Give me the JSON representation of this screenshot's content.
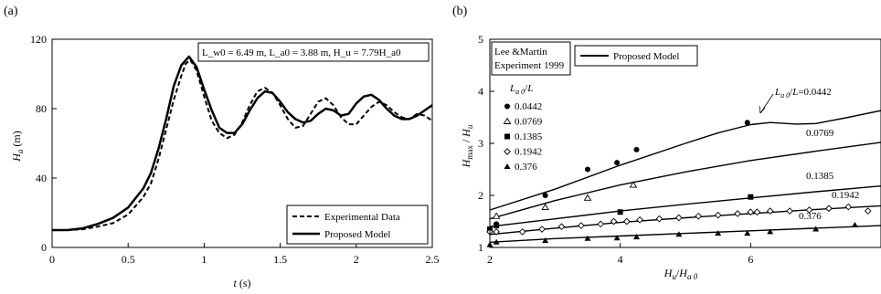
{
  "chart_data": [
    {
      "panel_label": "(a)",
      "type": "line",
      "xlabel": "t  (s)",
      "ylabel": "H_a  (m)",
      "xlim": [
        0,
        2.5
      ],
      "ylim": [
        0,
        120
      ],
      "xticks": [
        0,
        0.5,
        1,
        1.5,
        2,
        2.5
      ],
      "xtick_labels": [
        "0",
        "0.5",
        "1",
        "1.5",
        "2",
        "2.5"
      ],
      "yticks": [
        0,
        40,
        80,
        120
      ],
      "ytick_labels": [
        "0",
        "40",
        "80",
        "120"
      ],
      "annotation": "L_w0 = 6.49 m, L_a0 = 3.88 m, H_u = 7.79H_a0",
      "legend_position": "bottom-right",
      "series": [
        {
          "name": "Experimental Data",
          "style": "dashed",
          "x": [
            0,
            0.1,
            0.2,
            0.3,
            0.4,
            0.5,
            0.6,
            0.65,
            0.7,
            0.75,
            0.8,
            0.85,
            0.88,
            0.91,
            0.95,
            1.0,
            1.05,
            1.1,
            1.15,
            1.2,
            1.25,
            1.3,
            1.35,
            1.4,
            1.45,
            1.5,
            1.55,
            1.6,
            1.65,
            1.7,
            1.75,
            1.8,
            1.85,
            1.9,
            1.95,
            2.0,
            2.05,
            2.1,
            2.15,
            2.2,
            2.25,
            2.3,
            2.35,
            2.4,
            2.45,
            2.5
          ],
          "y": [
            10,
            10,
            10.5,
            12,
            14,
            19,
            29,
            37,
            51,
            68,
            85,
            99,
            106,
            108,
            102,
            87,
            73,
            66,
            63,
            65,
            72,
            82,
            90,
            92,
            89,
            82,
            74,
            69,
            70,
            77,
            84,
            86,
            82,
            75,
            71,
            71,
            76,
            81,
            84,
            82,
            78,
            75,
            74,
            77,
            76,
            73
          ]
        },
        {
          "name": "Proposed Model",
          "style": "solid",
          "x": [
            0,
            0.1,
            0.2,
            0.3,
            0.4,
            0.5,
            0.6,
            0.65,
            0.7,
            0.75,
            0.8,
            0.85,
            0.9,
            0.95,
            1.0,
            1.05,
            1.1,
            1.15,
            1.2,
            1.25,
            1.3,
            1.35,
            1.4,
            1.45,
            1.5,
            1.55,
            1.6,
            1.65,
            1.7,
            1.75,
            1.8,
            1.85,
            1.9,
            1.95,
            2.0,
            2.05,
            2.1,
            2.15,
            2.2,
            2.25,
            2.3,
            2.35,
            2.4,
            2.45,
            2.5
          ],
          "y": [
            10,
            10,
            11,
            13.5,
            17,
            23,
            34,
            43,
            57,
            74,
            93,
            105,
            110,
            104,
            91,
            79,
            69,
            66,
            66,
            71,
            79,
            86,
            90,
            89,
            84,
            78,
            74,
            72,
            73,
            77,
            80,
            79,
            76,
            77,
            83,
            87,
            88,
            85,
            80,
            76,
            74,
            74,
            76,
            79,
            82
          ]
        }
      ]
    },
    {
      "panel_label": "(b)",
      "type": "scatter",
      "xlabel": "H_u / H_a0",
      "ylabel": "H_max / H_u",
      "xlim": [
        2,
        8
      ],
      "ylim": [
        1,
        5
      ],
      "xticks": [
        2,
        4,
        6
      ],
      "xtick_labels": [
        "2",
        "4",
        "6"
      ],
      "yticks": [
        1,
        2,
        3,
        4,
        5
      ],
      "ytick_labels": [
        "1",
        "2",
        "3",
        "4",
        "5"
      ],
      "legend_left_title": [
        "Lee &Martin",
        "Experiment 1999"
      ],
      "legend_right": "Proposed Model",
      "legend_group_title": "L_a0/L",
      "curve_labels": [
        "L_a0/L=0.0442",
        "0.0769",
        "0.1385",
        "0.1942",
        "0.376"
      ],
      "series": [
        {
          "name": "0.0442",
          "marker": "filled-circle",
          "x": [
            2.1,
            2.85,
            3.5,
            3.95,
            4.25,
            5.95
          ],
          "y": [
            1.45,
            2.0,
            2.5,
            2.63,
            2.88,
            3.4
          ],
          "curve_x": [
            2,
            3,
            4,
            5,
            5.5,
            6,
            6.3,
            6.7,
            7,
            7.5,
            8
          ],
          "curve_y": [
            1.72,
            2.12,
            2.58,
            3.0,
            3.2,
            3.36,
            3.4,
            3.37,
            3.38,
            3.5,
            3.63
          ]
        },
        {
          "name": "0.0769",
          "marker": "open-triangle",
          "x": [
            2.1,
            2.85,
            3.5,
            4.2
          ],
          "y": [
            1.6,
            1.77,
            1.95,
            2.2
          ],
          "curve_x": [
            2,
            3,
            4,
            5,
            6,
            7,
            8
          ],
          "curve_y": [
            1.55,
            1.9,
            2.2,
            2.45,
            2.67,
            2.85,
            3.02
          ]
        },
        {
          "name": "0.1385",
          "marker": "filled-square",
          "x": [
            2.0,
            2.1,
            4.0,
            6.0
          ],
          "y": [
            1.35,
            1.42,
            1.68,
            1.97
          ],
          "curve_x": [
            2,
            3,
            4,
            5,
            6,
            7,
            8
          ],
          "curve_y": [
            1.4,
            1.55,
            1.7,
            1.83,
            1.95,
            2.07,
            2.18
          ]
        },
        {
          "name": "0.1942",
          "marker": "open-diamond",
          "x": [
            2.0,
            2.1,
            2.5,
            2.8,
            3.1,
            3.4,
            3.7,
            3.9,
            4.1,
            4.3,
            4.6,
            4.9,
            5.2,
            5.5,
            5.8,
            6.0,
            6.1,
            6.3,
            6.6,
            6.9,
            7.2,
            7.5,
            7.8
          ],
          "y": [
            1.3,
            1.3,
            1.3,
            1.35,
            1.4,
            1.42,
            1.45,
            1.5,
            1.5,
            1.53,
            1.55,
            1.57,
            1.6,
            1.62,
            1.65,
            1.68,
            1.68,
            1.7,
            1.7,
            1.72,
            1.75,
            1.78,
            1.7
          ],
          "curve_x": [
            2,
            3,
            4,
            5,
            6,
            7,
            8
          ],
          "curve_y": [
            1.25,
            1.37,
            1.48,
            1.57,
            1.65,
            1.73,
            1.8
          ]
        },
        {
          "name": "0.376",
          "marker": "filled-triangle",
          "x": [
            2.0,
            2.1,
            2.85,
            3.5,
            3.95,
            4.25,
            4.9,
            5.5,
            5.95,
            6.3,
            7.0,
            7.6
          ],
          "y": [
            1.05,
            1.1,
            1.13,
            1.17,
            1.18,
            1.2,
            1.25,
            1.27,
            1.27,
            1.3,
            1.35,
            1.43
          ],
          "curve_x": [
            2,
            3,
            4,
            5,
            6,
            7,
            8
          ],
          "curve_y": [
            1.1,
            1.17,
            1.22,
            1.27,
            1.32,
            1.37,
            1.42
          ]
        }
      ]
    }
  ]
}
